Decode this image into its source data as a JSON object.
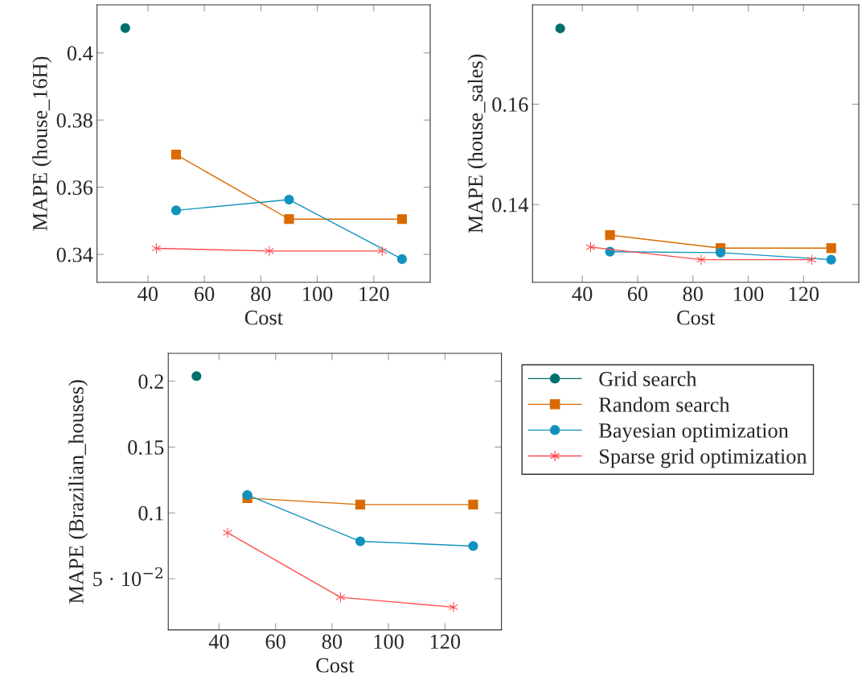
{
  "chart_data": [
    {
      "type": "line",
      "xlabel": "Cost",
      "ylabel": "MAPE (house_16H)",
      "xlim": [
        22,
        140
      ],
      "xticks": [
        40,
        60,
        80,
        100,
        120
      ],
      "ylim": [
        0.3317,
        0.4143
      ],
      "yticks": [
        0.34,
        0.36,
        0.38,
        0.4
      ],
      "grid": false,
      "legend": false,
      "series": [
        {
          "color": "#00706b",
          "marker": "circle",
          "x": [
            32
          ],
          "values": [
            0.4074
          ]
        },
        {
          "color": "#d96a00",
          "marker": "square",
          "x": [
            50,
            90,
            130
          ],
          "values": [
            0.3697,
            0.3505,
            0.3505
          ]
        },
        {
          "color": "#1192be",
          "marker": "circle",
          "x": [
            50,
            90,
            130
          ],
          "values": [
            0.3531,
            0.3563,
            0.3386
          ]
        },
        {
          "color": "#ff4d4d",
          "marker": "cross",
          "x": [
            43,
            83,
            123
          ],
          "values": [
            0.3418,
            0.341,
            0.341
          ]
        }
      ]
    },
    {
      "type": "line",
      "xlabel": "Cost",
      "ylabel": "MAPE (house_sales)",
      "xlim": [
        22,
        140
      ],
      "xticks": [
        40,
        60,
        80,
        100,
        120
      ],
      "ylim": [
        0.1245,
        0.1798
      ],
      "yticks": [
        0.14,
        0.16
      ],
      "grid": false,
      "legend": false,
      "series": [
        {
          "color": "#00706b",
          "marker": "circle",
          "x": [
            32
          ],
          "values": [
            0.1751
          ]
        },
        {
          "color": "#d96a00",
          "marker": "square",
          "x": [
            50,
            90,
            130
          ],
          "values": [
            0.1339,
            0.1313,
            0.1313
          ]
        },
        {
          "color": "#1192be",
          "marker": "circle",
          "x": [
            50,
            90,
            130
          ],
          "values": [
            0.1306,
            0.1304,
            0.129
          ]
        },
        {
          "color": "#ff4d4d",
          "marker": "cross",
          "x": [
            43,
            83,
            123
          ],
          "values": [
            0.1315,
            0.129,
            0.129
          ]
        }
      ]
    },
    {
      "type": "line",
      "xlabel": "Cost",
      "ylabel": "MAPE (Brazilian_houses)",
      "xlim": [
        22,
        140
      ],
      "xticks": [
        40,
        60,
        80,
        100,
        120
      ],
      "ylim": [
        0.0111,
        0.2212
      ],
      "yticks": [
        {
          "value": 0.05,
          "label": "5 · 10$^{−2}$"
        },
        0.1,
        0.15,
        0.2
      ],
      "grid": false,
      "legend": "right",
      "series": [
        {
          "name": "Grid search",
          "color": "#00706b",
          "marker": "circle",
          "x": [
            32
          ],
          "values": [
            0.2039
          ]
        },
        {
          "name": "Random search",
          "color": "#d96a00",
          "marker": "square",
          "x": [
            50,
            90,
            130
          ],
          "values": [
            0.1112,
            0.1063,
            0.1063
          ]
        },
        {
          "name": "Bayesian optimization",
          "color": "#1192be",
          "marker": "circle",
          "x": [
            50,
            90,
            130
          ],
          "values": [
            0.1136,
            0.0784,
            0.0748
          ]
        },
        {
          "name": "Sparse grid optimization",
          "color": "#ff4d4d",
          "marker": "cross",
          "x": [
            43,
            83,
            123
          ],
          "values": [
            0.0849,
            0.0359,
            0.0284
          ]
        }
      ]
    }
  ]
}
